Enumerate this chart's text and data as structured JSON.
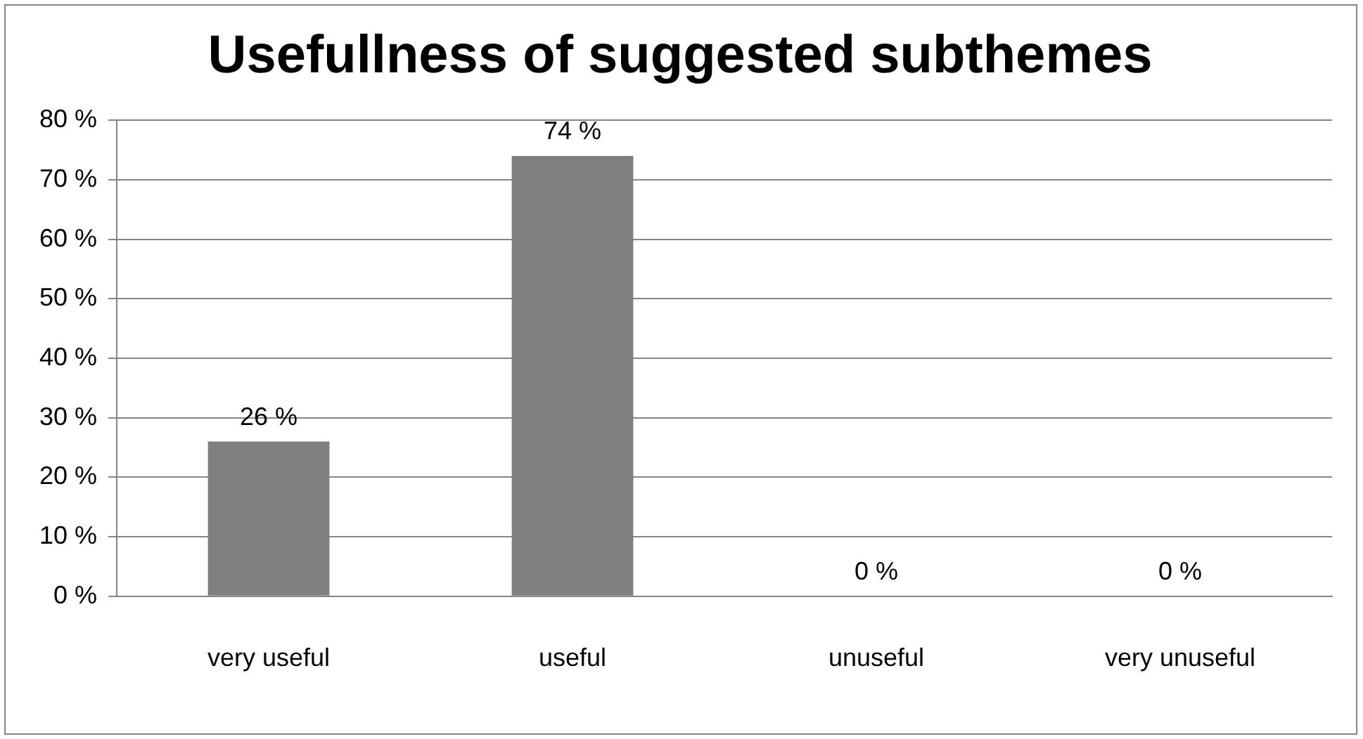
{
  "chart_data": {
    "type": "bar",
    "title": "Usefullness of suggested subthemes",
    "categories": [
      "very useful",
      "useful",
      "unuseful",
      "very unuseful"
    ],
    "values": [
      26,
      74,
      0,
      0
    ],
    "color": "#808080",
    "value_labels": [
      "26 %",
      "74 %",
      "0 %",
      "0 %"
    ],
    "ylim": [
      0,
      80
    ],
    "yticks": [
      {
        "value": 0,
        "label": "0 %"
      },
      {
        "value": 10,
        "label": "10 %"
      },
      {
        "value": 20,
        "label": "20 %"
      },
      {
        "value": 30,
        "label": "30 %"
      },
      {
        "value": 40,
        "label": "40 %"
      },
      {
        "value": 50,
        "label": "50 %"
      },
      {
        "value": 60,
        "label": "60 %"
      },
      {
        "value": 70,
        "label": "70 %"
      },
      {
        "value": 80,
        "label": "80 %"
      }
    ],
    "grid": "y",
    "legend": false
  }
}
